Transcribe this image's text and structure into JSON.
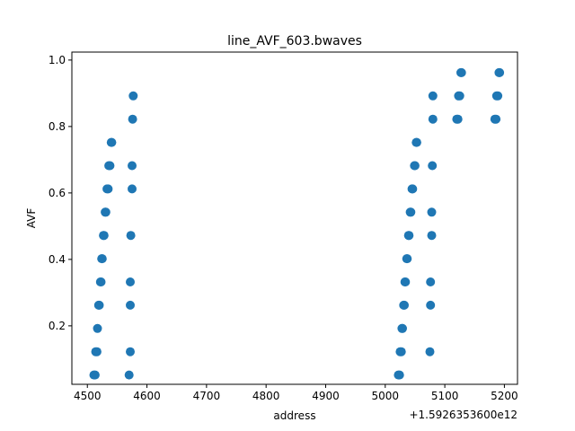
{
  "chart_data": {
    "type": "scatter",
    "title": "line_AVF_603.bwaves",
    "xlabel": "address",
    "ylabel": "AVF",
    "x_offset_label": "+1.5926353600e12",
    "xlim": [
      4474,
      5222
    ],
    "ylim": [
      0.024,
      1.024
    ],
    "xticks": [
      4500,
      4600,
      4700,
      4800,
      4900,
      5000,
      5100,
      5200
    ],
    "yticks": [
      0.2,
      0.4,
      0.6,
      0.8,
      1.0
    ],
    "ytick_labels": [
      "0.2",
      "0.4",
      "0.6",
      "0.8",
      "1.0"
    ],
    "grid": false,
    "marker_color": "#1f77b4",
    "points": [
      [
        4511,
        0.052
      ],
      [
        4513,
        0.052
      ],
      [
        4514,
        0.122
      ],
      [
        4516,
        0.122
      ],
      [
        4517,
        0.192
      ],
      [
        4519,
        0.262
      ],
      [
        4520,
        0.262
      ],
      [
        4522,
        0.332
      ],
      [
        4523,
        0.332
      ],
      [
        4524,
        0.402
      ],
      [
        4525,
        0.402
      ],
      [
        4527,
        0.472
      ],
      [
        4528,
        0.472
      ],
      [
        4530,
        0.542
      ],
      [
        4531,
        0.542
      ],
      [
        4533,
        0.612
      ],
      [
        4535,
        0.612
      ],
      [
        4536,
        0.682
      ],
      [
        4538,
        0.682
      ],
      [
        4540,
        0.752
      ],
      [
        4541,
        0.752
      ],
      [
        4570,
        0.052
      ],
      [
        4572,
        0.122
      ],
      [
        4572,
        0.262
      ],
      [
        4572,
        0.332
      ],
      [
        4573,
        0.472
      ],
      [
        4575,
        0.612
      ],
      [
        4575,
        0.682
      ],
      [
        4576,
        0.822
      ],
      [
        4577,
        0.892
      ],
      [
        5022,
        0.052
      ],
      [
        5024,
        0.052
      ],
      [
        5025,
        0.122
      ],
      [
        5027,
        0.122
      ],
      [
        5028,
        0.192
      ],
      [
        5029,
        0.192
      ],
      [
        5031,
        0.262
      ],
      [
        5032,
        0.262
      ],
      [
        5033,
        0.332
      ],
      [
        5034,
        0.332
      ],
      [
        5036,
        0.402
      ],
      [
        5037,
        0.402
      ],
      [
        5039,
        0.472
      ],
      [
        5040,
        0.472
      ],
      [
        5042,
        0.542
      ],
      [
        5043,
        0.542
      ],
      [
        5045,
        0.612
      ],
      [
        5046,
        0.612
      ],
      [
        5049,
        0.682
      ],
      [
        5050,
        0.682
      ],
      [
        5052,
        0.752
      ],
      [
        5053,
        0.752
      ],
      [
        5075,
        0.122
      ],
      [
        5076,
        0.262
      ],
      [
        5076,
        0.332
      ],
      [
        5078,
        0.472
      ],
      [
        5078,
        0.542
      ],
      [
        5079,
        0.682
      ],
      [
        5080,
        0.822
      ],
      [
        5080,
        0.892
      ],
      [
        5120,
        0.822
      ],
      [
        5122,
        0.822
      ],
      [
        5123,
        0.892
      ],
      [
        5125,
        0.892
      ],
      [
        5127,
        0.962
      ],
      [
        5128,
        0.962
      ],
      [
        5184,
        0.822
      ],
      [
        5186,
        0.822
      ],
      [
        5187,
        0.892
      ],
      [
        5189,
        0.892
      ],
      [
        5191,
        0.962
      ],
      [
        5192,
        0.962
      ]
    ]
  }
}
